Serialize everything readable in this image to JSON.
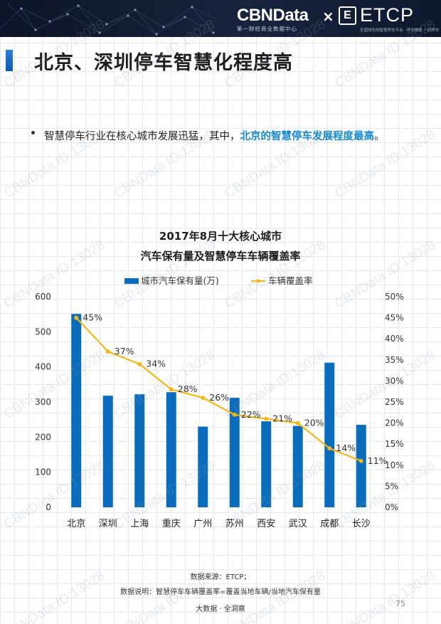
{
  "header": {
    "brand": "CBNData",
    "brand_sub": "第一财经商业数据中心",
    "times": "×",
    "partner_logo": "E",
    "partner": "ETCP",
    "partner_sub": "全国领先的智慧停车平台 · 停车缴费 一码停车"
  },
  "page_title": "北京、深圳停车智慧化程度高",
  "bullet": {
    "text_plain": "智慧停车行业在核心城市发展迅猛，其中，",
    "text_highlight": "北京的智慧停车发展程度最高",
    "text_end": "。"
  },
  "chart_data": {
    "type": "bar+line",
    "title_line1": "2017年8月十大核心城市",
    "title_line2": "汽车保有量及智慧停车车辆覆盖率",
    "categories": [
      "北京",
      "深圳",
      "上海",
      "重庆",
      "广州",
      "苏州",
      "西安",
      "武汉",
      "成都",
      "长沙"
    ],
    "series": [
      {
        "name": "城市汽车保有量(万)",
        "type": "bar",
        "axis": "left",
        "color": "#0a6cbd",
        "values": [
          551,
          318,
          322,
          328,
          230,
          312,
          245,
          232,
          412,
          235
        ]
      },
      {
        "name": "车辆覆盖率",
        "type": "line",
        "axis": "right",
        "color": "#f3b816",
        "values": [
          45,
          37,
          34,
          28,
          26,
          22,
          21,
          20,
          14,
          11
        ],
        "labels": [
          "45%",
          "37%",
          "34%",
          "28%",
          "26%",
          "22%",
          "21%",
          "20%",
          "14%",
          "11%"
        ]
      }
    ],
    "y_left": {
      "min": 0,
      "max": 600,
      "ticks": [
        "0",
        "100",
        "200",
        "300",
        "400",
        "500",
        "600"
      ]
    },
    "y_right": {
      "min": 0,
      "max": 50,
      "ticks": [
        "0%",
        "5%",
        "10%",
        "15%",
        "20%",
        "25%",
        "30%",
        "35%",
        "40%",
        "45%",
        "50%"
      ]
    },
    "legend_position": "top-center"
  },
  "footer": {
    "source": "数据来源：ETCP；",
    "note": "数据说明：智慧停车车辆覆盖率=覆盖当地车辆/当地汽车保有量",
    "slogan": "大数据 · 全洞察",
    "page_number": "75"
  },
  "watermark": "CBNData ID:13028"
}
